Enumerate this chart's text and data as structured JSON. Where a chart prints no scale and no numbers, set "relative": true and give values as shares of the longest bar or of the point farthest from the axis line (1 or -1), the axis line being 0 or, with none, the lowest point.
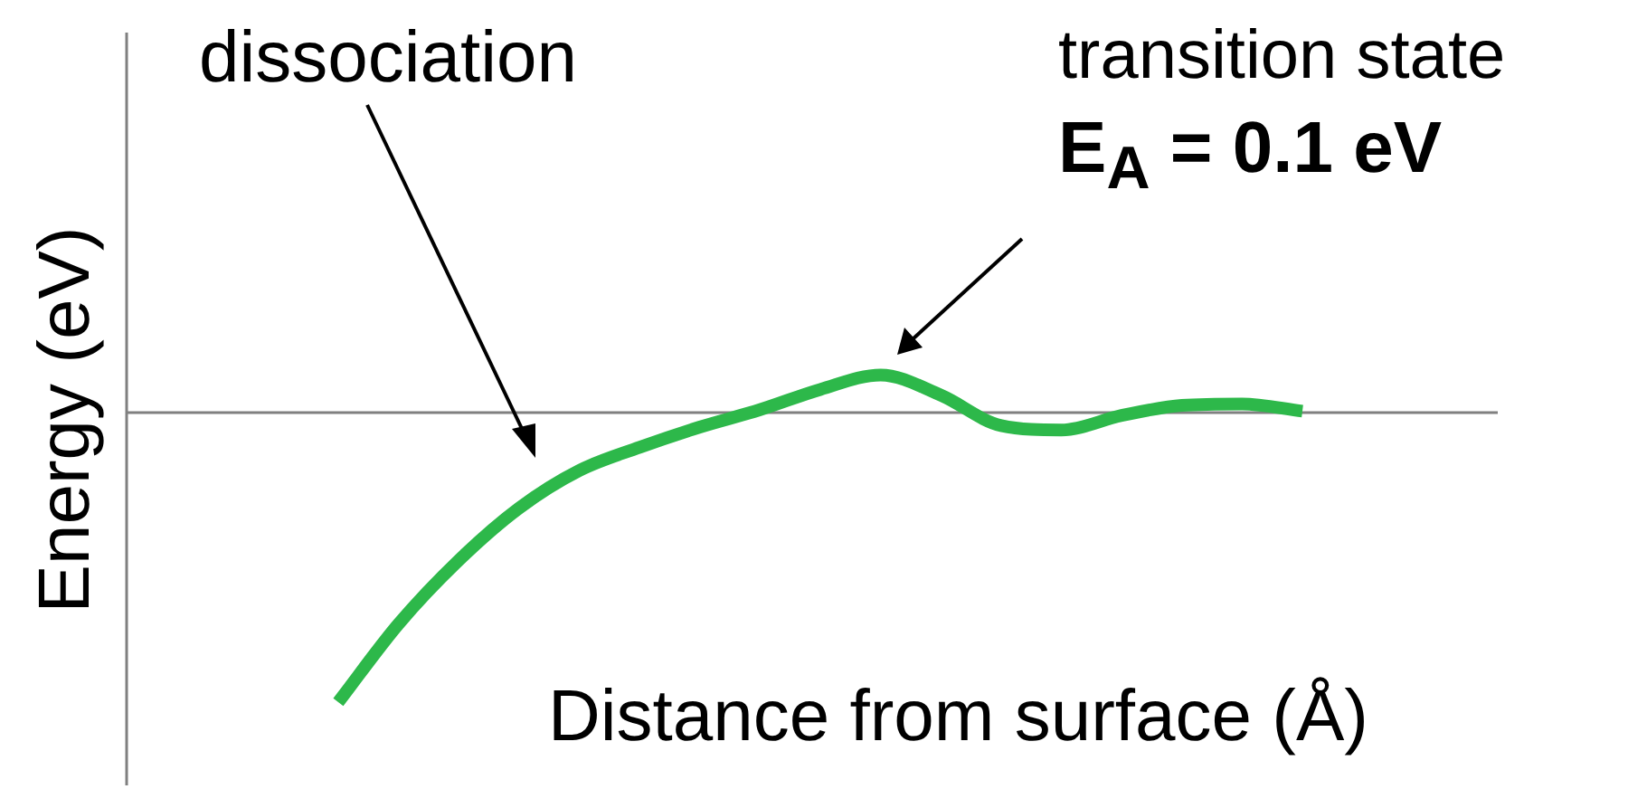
{
  "chart_data": {
    "type": "line",
    "relative": true,
    "xlabel": "Distance from surface (Å)",
    "ylabel": "Energy (eV)",
    "categories": [
      null,
      null,
      null,
      null,
      null,
      null,
      null,
      null,
      null,
      null,
      null,
      null,
      null,
      null,
      null,
      null,
      null
    ],
    "series": [
      {
        "color": "#2db84a",
        "values": [
          -1.0,
          -0.73,
          -0.51,
          -0.33,
          -0.2,
          -0.12,
          -0.05,
          0.01,
          0.08,
          0.13,
          0.06,
          -0.045,
          -0.06,
          -0.01,
          0.025,
          0.03,
          0.005
        ]
      }
    ],
    "annotations": [
      "dissociation",
      "transition state",
      "E$_{A}$ = 0.1 eV"
    ],
    "grid": false,
    "legend": false,
    "tick_labels": false,
    "marker": "none",
    "line_style": "solid"
  }
}
